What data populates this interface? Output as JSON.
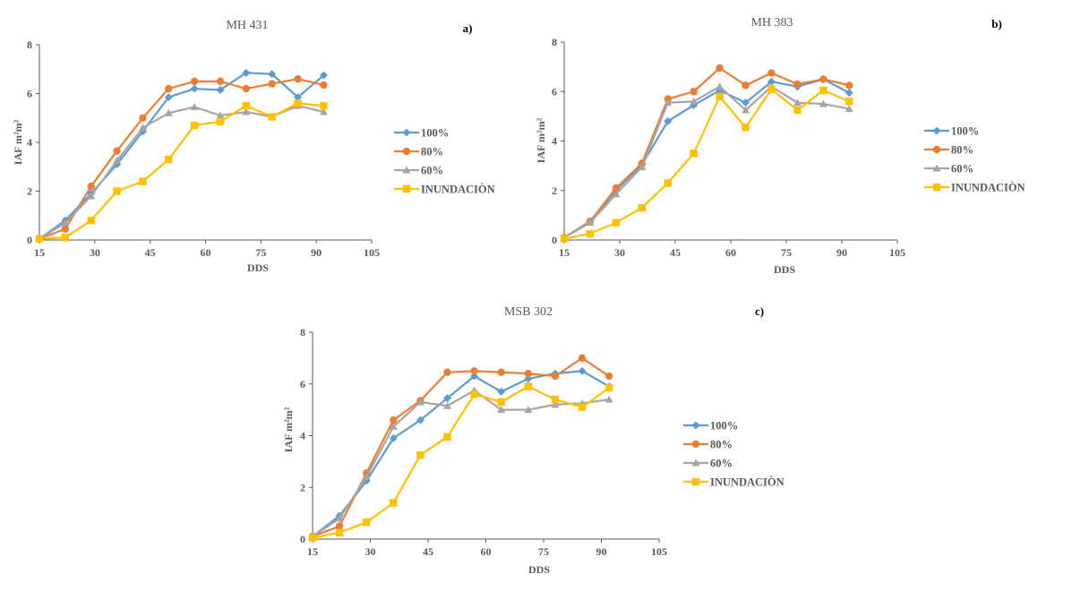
{
  "colors": {
    "100%": "#5B9BD5",
    "80%": "#ED7D31",
    "60%": "#A5A5A5",
    "INUNDACIÒN": "#FFC000"
  },
  "chart_data": [
    {
      "id": "a",
      "type": "line",
      "panel_label": "a)",
      "title": "MH 431",
      "xlabel": "DDS",
      "ylabel": "IAF m²m²",
      "xlim": [
        15,
        105
      ],
      "ylim": [
        0,
        8
      ],
      "xticks": [
        15,
        30,
        45,
        60,
        75,
        90,
        105
      ],
      "yticks": [
        0,
        2,
        4,
        6,
        8
      ],
      "grid": false,
      "legend": "right",
      "x": [
        15,
        22,
        29,
        36,
        43,
        50,
        57,
        64,
        71,
        78,
        85,
        92
      ],
      "series": [
        {
          "name": "100%",
          "marker": "diamond",
          "values": [
            0.05,
            0.8,
            1.9,
            3.1,
            4.45,
            5.85,
            6.2,
            6.15,
            6.85,
            6.8,
            5.85,
            6.75
          ]
        },
        {
          "name": "80%",
          "marker": "circle",
          "values": [
            0.05,
            0.45,
            2.2,
            3.65,
            5.0,
            6.2,
            6.5,
            6.5,
            6.2,
            6.4,
            6.6,
            6.35
          ]
        },
        {
          "name": "60%",
          "marker": "triangle",
          "values": [
            0.05,
            0.7,
            1.8,
            3.25,
            4.6,
            5.2,
            5.45,
            5.1,
            5.25,
            5.05,
            5.5,
            5.25
          ]
        },
        {
          "name": "INUNDACIÒN",
          "marker": "square",
          "values": [
            0.05,
            0.1,
            0.8,
            2.0,
            2.4,
            3.3,
            4.7,
            4.85,
            5.5,
            5.05,
            5.6,
            5.5
          ]
        }
      ]
    },
    {
      "id": "b",
      "type": "line",
      "panel_label": "b)",
      "title": "MH 383",
      "xlabel": "DDS",
      "ylabel": "IAF m²m²",
      "xlim": [
        15,
        105
      ],
      "ylim": [
        0,
        8
      ],
      "xticks": [
        15,
        30,
        45,
        60,
        75,
        90,
        105
      ],
      "yticks": [
        0,
        2,
        4,
        6,
        8
      ],
      "grid": false,
      "legend": "right",
      "x": [
        15,
        22,
        29,
        36,
        43,
        50,
        57,
        64,
        71,
        78,
        85,
        92
      ],
      "series": [
        {
          "name": "100%",
          "marker": "diamond",
          "values": [
            0.1,
            0.75,
            2.0,
            3.05,
            4.8,
            5.45,
            6.05,
            5.55,
            6.4,
            6.2,
            6.5,
            5.95
          ]
        },
        {
          "name": "80%",
          "marker": "circle",
          "values": [
            0.1,
            0.75,
            2.1,
            3.1,
            5.7,
            6.0,
            6.95,
            6.25,
            6.75,
            6.3,
            6.5,
            6.25
          ]
        },
        {
          "name": "60%",
          "marker": "triangle",
          "values": [
            0.1,
            0.7,
            1.85,
            2.95,
            5.55,
            5.6,
            6.2,
            5.25,
            6.2,
            5.55,
            5.5,
            5.3
          ]
        },
        {
          "name": "INUNDACIÒN",
          "marker": "square",
          "values": [
            0.05,
            0.25,
            0.7,
            1.3,
            2.3,
            3.5,
            5.8,
            4.55,
            6.1,
            5.25,
            6.05,
            5.6
          ]
        }
      ]
    },
    {
      "id": "c",
      "type": "line",
      "panel_label": "c)",
      "title": "MSB 302",
      "xlabel": "DDS",
      "ylabel": "IAF m²m²",
      "xlim": [
        15,
        105
      ],
      "ylim": [
        0,
        8
      ],
      "xticks": [
        15,
        30,
        45,
        60,
        75,
        90,
        105
      ],
      "yticks": [
        0,
        2,
        4,
        6,
        8
      ],
      "grid": false,
      "legend": "right",
      "x": [
        15,
        22,
        29,
        36,
        43,
        50,
        57,
        64,
        71,
        78,
        85,
        92
      ],
      "series": [
        {
          "name": "100%",
          "marker": "diamond",
          "values": [
            0.1,
            0.9,
            2.25,
            3.9,
            4.6,
            5.45,
            6.3,
            5.7,
            6.2,
            6.4,
            6.5,
            5.9
          ]
        },
        {
          "name": "80%",
          "marker": "circle",
          "values": [
            0.1,
            0.5,
            2.55,
            4.6,
            5.35,
            6.45,
            6.5,
            6.45,
            6.4,
            6.3,
            7.0,
            6.3
          ]
        },
        {
          "name": "60%",
          "marker": "triangle",
          "values": [
            0.1,
            0.8,
            2.4,
            4.35,
            5.3,
            5.15,
            5.75,
            5.0,
            5.0,
            5.2,
            5.25,
            5.4
          ]
        },
        {
          "name": "INUNDACIÒN",
          "marker": "square",
          "values": [
            0.05,
            0.25,
            0.65,
            1.4,
            3.25,
            3.95,
            5.6,
            5.3,
            5.9,
            5.4,
            5.1,
            5.85
          ]
        }
      ]
    }
  ]
}
